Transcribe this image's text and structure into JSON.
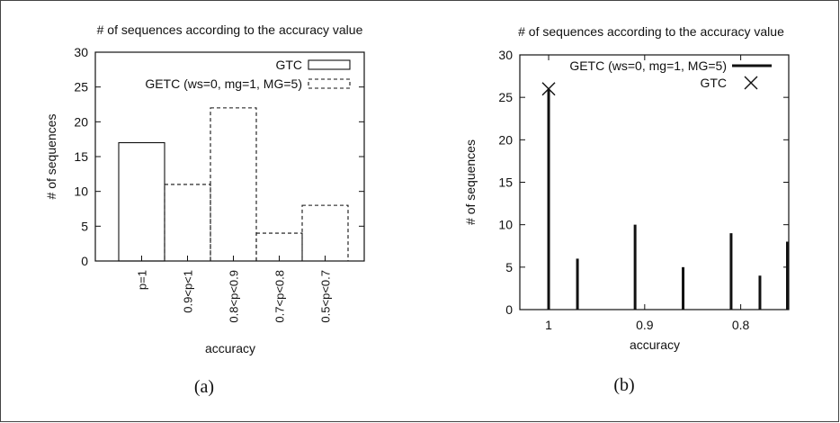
{
  "chart_data": [
    {
      "type": "bar",
      "title": "# of sequences according to the accuracy value",
      "xlabel": "accuracy",
      "ylabel": "# of sequences",
      "ylim": [
        0,
        30
      ],
      "yticks": [
        "0",
        "5",
        "10",
        "15",
        "20",
        "25",
        "30"
      ],
      "categories": [
        "p=1",
        "0.9<p<1",
        "0.8<p<0.9",
        "0.7<p<0.8",
        "0.5<p<0.7"
      ],
      "series": [
        {
          "name": "GTC",
          "style": "solid",
          "values": [
            17,
            null,
            null,
            null,
            null
          ]
        },
        {
          "name": "GETC (ws=0, mg=1, MG=5)",
          "style": "dashed",
          "values": [
            null,
            11,
            22,
            4,
            8
          ]
        }
      ],
      "legend": "top-right",
      "grid": false,
      "caption": "(a)"
    },
    {
      "type": "bar",
      "title": "# of sequences according to the accuracy value",
      "xlabel": "accuracy",
      "ylabel": "# of sequences",
      "ylim": [
        0,
        30
      ],
      "xlim": [
        1.03,
        0.75
      ],
      "yticks": [
        "0",
        "5",
        "10",
        "15",
        "20",
        "25",
        "30"
      ],
      "xticks": [
        {
          "value": 1.0,
          "label": "1"
        },
        {
          "value": 0.9,
          "label": "0.9"
        },
        {
          "value": 0.8,
          "label": "0.8"
        }
      ],
      "series": [
        {
          "name": "GETC (ws=0, mg=1, MG=5)",
          "style": "impulses",
          "points": [
            {
              "x": 1.0,
              "y": 26
            },
            {
              "x": 0.97,
              "y": 6
            },
            {
              "x": 0.91,
              "y": 10
            },
            {
              "x": 0.86,
              "y": 5
            },
            {
              "x": 0.81,
              "y": 9
            },
            {
              "x": 0.78,
              "y": 4
            },
            {
              "x": 0.75,
              "y": 8
            }
          ]
        },
        {
          "name": "GTC",
          "style": "points",
          "points": [
            {
              "x": 1.0,
              "y": 26
            }
          ]
        }
      ],
      "legend": "top-right",
      "grid": false,
      "caption": "(b)"
    }
  ]
}
